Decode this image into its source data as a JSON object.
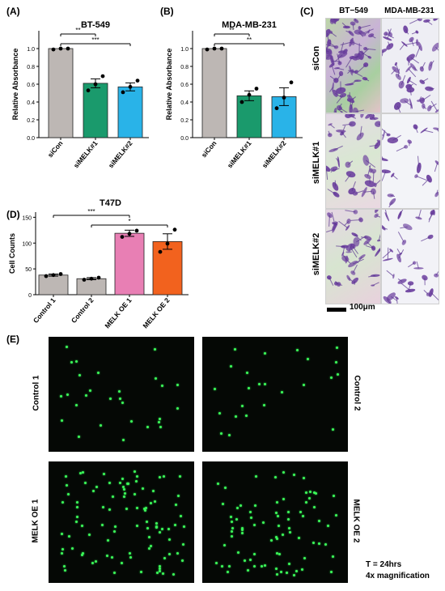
{
  "panels": {
    "A": "(A)",
    "B": "(B)",
    "C": "(C)",
    "D": "(D)",
    "E": "(E)"
  },
  "chart_data": [
    {
      "panel": "A",
      "type": "bar",
      "title": "BT-549",
      "ylabel": "Relative Absorbance",
      "categories": [
        "siCon",
        "siMELK#1",
        "siMELK#2"
      ],
      "values": [
        1.0,
        0.61,
        0.57
      ],
      "errors": [
        0.0,
        0.05,
        0.045
      ],
      "points": [
        [
          0.99,
          1.0,
          1.0
        ],
        [
          0.53,
          0.6,
          0.69
        ],
        [
          0.51,
          0.57,
          0.64
        ]
      ],
      "colors": [
        "#bdb7b4",
        "#1a9a6c",
        "#29b3e8"
      ],
      "ylim": [
        0,
        1.2
      ],
      "yticks": [
        "0.0",
        "0.2",
        "0.4",
        "0.6",
        "0.8",
        "1.0"
      ],
      "significance": [
        {
          "from": 0,
          "to": 1,
          "label": "**"
        },
        {
          "from": 0,
          "to": 2,
          "label": "***"
        }
      ]
    },
    {
      "panel": "B",
      "type": "bar",
      "title": "MDA-MB-231",
      "ylabel": "Relative Absorbance",
      "categories": [
        "siCon",
        "siMELK#1",
        "siMELK#2"
      ],
      "values": [
        1.0,
        0.47,
        0.46
      ],
      "errors": [
        0.0,
        0.055,
        0.1
      ],
      "points": [
        [
          0.99,
          1.0,
          1.0
        ],
        [
          0.4,
          0.48,
          0.55
        ],
        [
          0.33,
          0.45,
          0.62
        ]
      ],
      "colors": [
        "#bdb7b4",
        "#1a9a6c",
        "#29b3e8"
      ],
      "ylim": [
        0,
        1.2
      ],
      "yticks": [
        "0.0",
        "0.2",
        "0.4",
        "0.6",
        "0.8",
        "1.0"
      ],
      "significance": [
        {
          "from": 0,
          "to": 1,
          "label": "**"
        },
        {
          "from": 0,
          "to": 2,
          "label": "**"
        }
      ]
    },
    {
      "panel": "D",
      "type": "bar",
      "title": "T47D",
      "ylabel": "Cell Counts",
      "categories": [
        "Control 1",
        "Control 2",
        "MELK OE 1",
        "MELK OE 2"
      ],
      "values": [
        38,
        31,
        119,
        103
      ],
      "errors": [
        2,
        2,
        6,
        15
      ],
      "points": [
        [
          36,
          38,
          40
        ],
        [
          29,
          31,
          33
        ],
        [
          112,
          118,
          124
        ],
        [
          83,
          99,
          126
        ]
      ],
      "colors": [
        "#bdb7b4",
        "#bdb7b4",
        "#e87fb4",
        "#f2621e"
      ],
      "ylim": [
        0,
        160
      ],
      "yticks": [
        "0",
        "50",
        "100",
        "150"
      ],
      "significance": [
        {
          "from": 0,
          "to": 2,
          "label": "***"
        },
        {
          "from": 1,
          "to": 3,
          "label": "*"
        }
      ]
    }
  ],
  "panel_c": {
    "columns": [
      "BT−549",
      "MDA-MB-231"
    ],
    "rows": [
      "siCon",
      "siMELK#1",
      "siMELK#2"
    ],
    "scale_bar": "100μm"
  },
  "panel_e": {
    "labels": [
      "Control 1",
      "Control 2",
      "MELK OE 1",
      "MELK OE 2"
    ],
    "note_line1": "T = 24hrs",
    "note_line2": "4x magnification",
    "dot_color": "#3cff5a"
  }
}
